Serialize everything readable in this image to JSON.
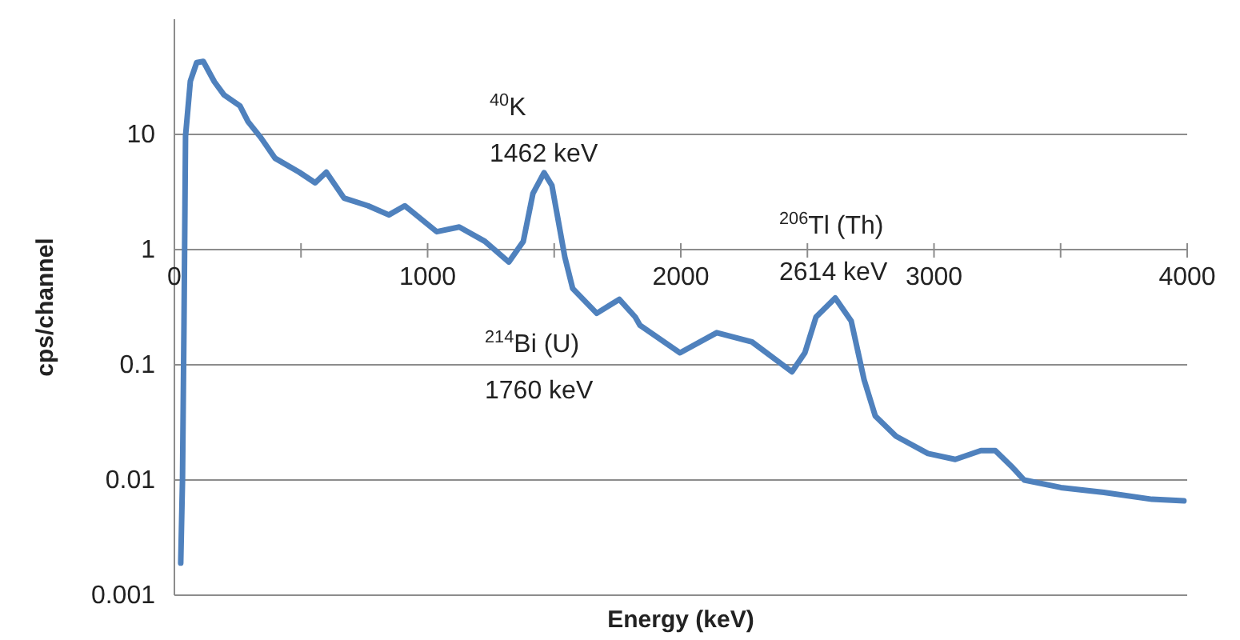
{
  "chart_data": {
    "type": "line",
    "xlabel": "Energy (keV)",
    "ylabel": "cps/channel",
    "log": "y",
    "grid": "y",
    "marker": "none",
    "line_style": "solid",
    "xlim": [
      0,
      4000
    ],
    "ylim": [
      0.001,
      100
    ],
    "xticks": [
      0,
      1000,
      2000,
      3000,
      4000
    ],
    "yticks": [
      0.001,
      0.01,
      0.1,
      1,
      10
    ],
    "x": [
      25,
      32,
      38,
      44,
      63,
      88,
      114,
      158,
      196,
      259,
      291,
      341,
      398,
      493,
      556,
      600,
      670,
      765,
      847,
      910,
      1036,
      1125,
      1226,
      1321,
      1378,
      1416,
      1460,
      1491,
      1542,
      1573,
      1668,
      1757,
      1820,
      1839,
      1997,
      2142,
      2281,
      2439,
      2490,
      2534,
      2610,
      2673,
      2724,
      2768,
      2850,
      2976,
      3084,
      3185,
      3242,
      3311,
      3356,
      3501,
      3671,
      3861,
      3987
    ],
    "series": [
      {
        "color": "#4f81bd",
        "values": [
          0.0019,
          0.01,
          0.24,
          9.7,
          29,
          42,
          43,
          28.6,
          22,
          17.7,
          12.9,
          9.4,
          6.2,
          4.7,
          3.8,
          4.7,
          2.8,
          2.4,
          2.0,
          2.4,
          1.43,
          1.57,
          1.18,
          0.78,
          1.18,
          3.07,
          4.65,
          3.6,
          0.86,
          0.46,
          0.28,
          0.37,
          0.26,
          0.22,
          0.127,
          0.19,
          0.158,
          0.087,
          0.127,
          0.26,
          0.38,
          0.24,
          0.074,
          0.036,
          0.024,
          0.017,
          0.0151,
          0.018,
          0.018,
          0.0128,
          0.01,
          0.0086,
          0.0078,
          0.0068,
          0.0066
        ]
      }
    ],
    "annotations": [
      "$^{40}$K\n1462 keV",
      "$^{214}$Bi (U)\n1760 keV",
      "$^{206}$Tl (Th)\n2614 keV"
    ]
  }
}
